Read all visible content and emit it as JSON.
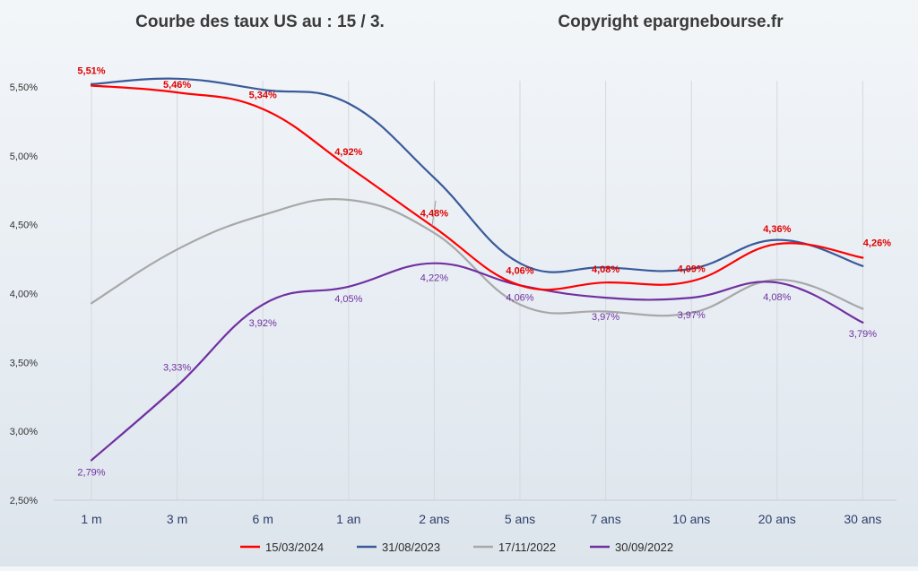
{
  "chart_data": {
    "type": "line",
    "title": "Courbe des taux US au : 15 / 3.",
    "subtitle": "Copyright epargnebourse.fr",
    "xlabel": "",
    "ylabel": "",
    "categories": [
      "1 m",
      "3 m",
      "6 m",
      "1 an",
      "2 ans",
      "5 ans",
      "7 ans",
      "10 ans",
      "20 ans",
      "30 ans"
    ],
    "ylim": [
      2.5,
      5.75
    ],
    "yticks": [
      2.5,
      3.0,
      3.5,
      4.0,
      4.5,
      5.0,
      5.5
    ],
    "ytick_labels": [
      "2,50%",
      "3,00%",
      "3,50%",
      "4,00%",
      "4,50%",
      "5,00%",
      "5,50%"
    ],
    "grid": "vertical",
    "legend_position": "bottom",
    "series": [
      {
        "name": "15/03/2024",
        "color": "#ff0000",
        "values": [
          5.51,
          5.46,
          5.34,
          4.92,
          4.48,
          4.06,
          4.08,
          4.09,
          4.36,
          4.26
        ],
        "labels": [
          "5,51%",
          "5,46%",
          "5,34%",
          "4,92%",
          "4,48%",
          "4,06%",
          "4,08%",
          "4,09%",
          "4,36%",
          "4,26%"
        ],
        "label_color": "#e00000",
        "label_bold": true
      },
      {
        "name": "31/08/2023",
        "color": "#3a5a9a",
        "values": [
          5.52,
          5.56,
          5.48,
          5.38,
          4.84,
          4.22,
          4.19,
          4.18,
          4.39,
          4.2
        ]
      },
      {
        "name": "17/11/2022",
        "color": "#a8a8a8",
        "values": [
          3.93,
          4.32,
          4.57,
          4.68,
          4.44,
          3.92,
          3.87,
          3.86,
          4.1,
          3.89
        ]
      },
      {
        "name": "30/09/2022",
        "color": "#7030a0",
        "values": [
          2.79,
          3.33,
          3.92,
          4.05,
          4.22,
          4.06,
          3.97,
          3.97,
          4.08,
          3.79
        ],
        "labels": [
          "2,79%",
          "3,33%",
          "3,92%",
          "4,05%",
          "4,22%",
          "4,06%",
          "3,97%",
          "3,97%",
          "4,08%",
          "3,79%"
        ],
        "label_color": "#7030a0",
        "label_bold": false
      }
    ]
  }
}
